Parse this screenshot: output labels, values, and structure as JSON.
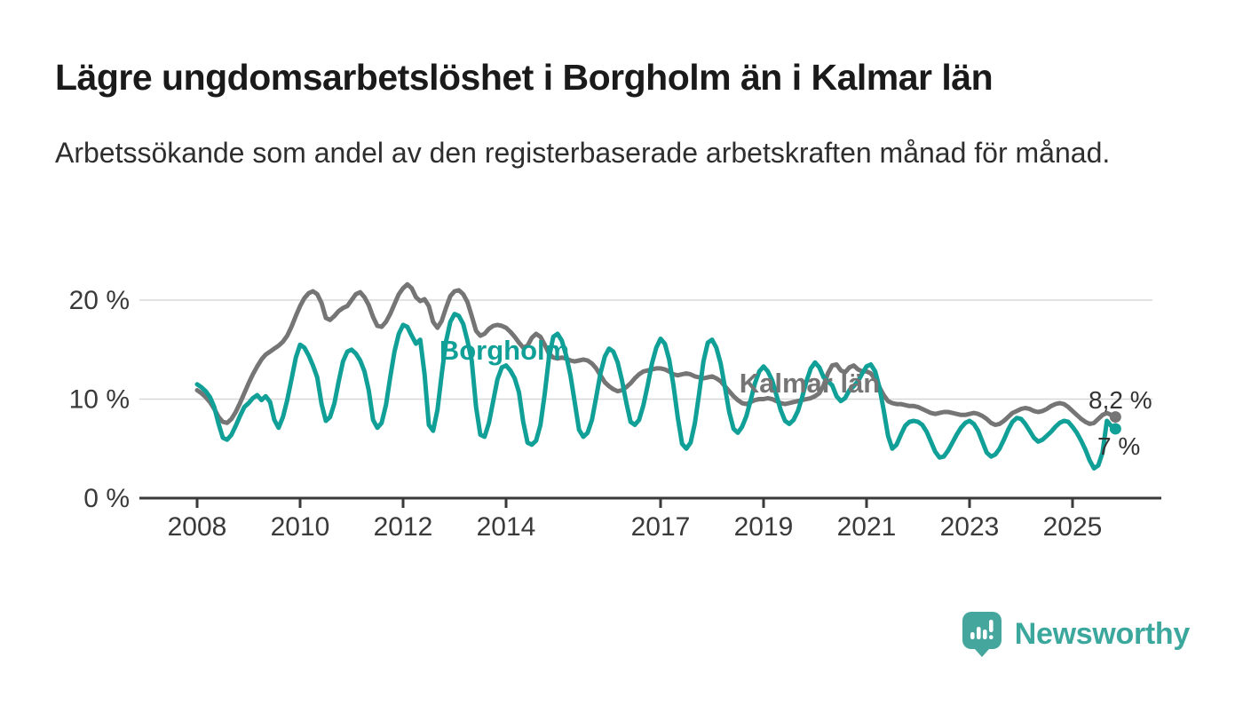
{
  "header": {
    "title": "Lägre ungdomsarbetslöshet i Borgholm än i Kalmar län",
    "subtitle": "Arbetssökande som andel av den registerbaserade arbetskraften månad för månad."
  },
  "branding": {
    "name": "Newsworthy",
    "logo_icon": "bar-chart-speech-bubble-icon",
    "logo_color": "#45a69e"
  },
  "chart_data": {
    "type": "line",
    "unit": "%",
    "frequency": "monthly",
    "start_year": 2008,
    "start_month": 1,
    "grid": "horizontal-only",
    "legend": "inline-labels-on-lines",
    "ylim": [
      0,
      23
    ],
    "y_ticks": [
      {
        "value": 0,
        "label": "0 %"
      },
      {
        "value": 10,
        "label": "10 %"
      },
      {
        "value": 20,
        "label": "20 %"
      }
    ],
    "x_tick_years": [
      2008,
      2010,
      2012,
      2014,
      2017,
      2019,
      2021,
      2023,
      2025
    ],
    "colors": {
      "grid": "#d8d8d8",
      "axis": "#3a3a3a"
    },
    "series": [
      {
        "name": "Kalmar län",
        "color": "#757575",
        "end_label": "8,2 %",
        "last_value": 8.2,
        "values": [
          10.9,
          10.6,
          10.2,
          9.7,
          9.0,
          8.2,
          7.7,
          7.6,
          8.0,
          8.7,
          9.6,
          10.6,
          11.6,
          12.5,
          13.3,
          14.0,
          14.5,
          14.8,
          15.1,
          15.4,
          15.8,
          16.4,
          17.3,
          18.4,
          19.4,
          20.2,
          20.7,
          20.9,
          20.6,
          19.7,
          18.2,
          18.0,
          18.4,
          18.9,
          19.2,
          19.4,
          20.0,
          20.6,
          20.8,
          20.3,
          19.5,
          18.3,
          17.4,
          17.3,
          17.8,
          18.6,
          19.6,
          20.6,
          21.2,
          21.6,
          21.2,
          20.3,
          19.9,
          20.1,
          19.4,
          17.8,
          17.2,
          17.9,
          19.2,
          20.4,
          20.9,
          21.0,
          20.6,
          19.8,
          18.4,
          16.9,
          16.4,
          16.6,
          17.1,
          17.4,
          17.5,
          17.4,
          17.2,
          16.8,
          16.3,
          15.7,
          15.2,
          15.4,
          16.2,
          16.6,
          16.3,
          15.5,
          14.6,
          14.2,
          14.1,
          14.2,
          14.1,
          13.9,
          13.8,
          13.9,
          14.0,
          13.9,
          13.6,
          13.1,
          12.4,
          11.7,
          11.3,
          11.0,
          10.8,
          10.9,
          11.2,
          11.6,
          12.1,
          12.5,
          12.8,
          12.9,
          13.0,
          13.1,
          13.1,
          13.0,
          12.8,
          12.5,
          12.4,
          12.5,
          12.6,
          12.5,
          12.3,
          12.2,
          12.1,
          12.2,
          12.3,
          12.1,
          11.8,
          11.3,
          10.8,
          10.3,
          9.9,
          9.6,
          9.5,
          9.7,
          9.9,
          10.0,
          10.0,
          10.1,
          10.0,
          9.8,
          9.6,
          9.5,
          9.6,
          9.7,
          9.8,
          9.9,
          10.0,
          10.1,
          10.3,
          10.6,
          11.4,
          12.6,
          13.4,
          13.5,
          12.9,
          12.7,
          13.2,
          13.4,
          13.0,
          12.8,
          12.8,
          12.6,
          12.0,
          11.2,
          10.4,
          9.8,
          9.6,
          9.5,
          9.5,
          9.4,
          9.3,
          9.3,
          9.2,
          9.0,
          8.8,
          8.6,
          8.5,
          8.6,
          8.7,
          8.7,
          8.6,
          8.5,
          8.4,
          8.4,
          8.5,
          8.6,
          8.5,
          8.3,
          8.0,
          7.6,
          7.4,
          7.5,
          7.8,
          8.2,
          8.6,
          8.8,
          9.0,
          9.1,
          9.0,
          8.8,
          8.7,
          8.8,
          9.0,
          9.3,
          9.5,
          9.6,
          9.5,
          9.2,
          8.8,
          8.4,
          8.0,
          7.7,
          7.5,
          7.6,
          8.0,
          8.4,
          8.6,
          8.4,
          8.2
        ]
      },
      {
        "name": "Borgholm",
        "color": "#11a097",
        "end_label": "7 %",
        "last_value": 7.0,
        "values": [
          11.5,
          11.2,
          10.8,
          10.2,
          9.2,
          7.5,
          6.1,
          5.9,
          6.4,
          7.3,
          8.3,
          9.2,
          9.6,
          10.1,
          10.4,
          9.9,
          10.3,
          9.7,
          7.9,
          7.1,
          8.2,
          9.9,
          12.0,
          14.2,
          15.5,
          15.2,
          14.4,
          13.4,
          12.2,
          9.5,
          7.8,
          8.2,
          9.6,
          11.8,
          13.8,
          14.8,
          15.0,
          14.6,
          13.9,
          12.8,
          10.9,
          7.9,
          7.1,
          7.6,
          9.4,
          12.2,
          14.8,
          16.6,
          17.5,
          17.3,
          16.4,
          15.6,
          16.0,
          12.5,
          7.4,
          6.8,
          8.9,
          12.5,
          15.8,
          17.8,
          18.6,
          18.4,
          17.6,
          15.9,
          13.9,
          9.2,
          6.4,
          6.2,
          7.6,
          9.8,
          12.0,
          13.2,
          13.4,
          12.9,
          12.1,
          10.7,
          7.7,
          5.6,
          5.4,
          5.8,
          7.4,
          10.5,
          14.2,
          16.3,
          16.6,
          15.9,
          14.4,
          12.4,
          9.7,
          6.9,
          6.2,
          6.6,
          7.9,
          10.2,
          12.6,
          14.3,
          15.1,
          14.8,
          13.7,
          11.9,
          9.7,
          7.7,
          7.4,
          7.9,
          9.4,
          11.4,
          13.6,
          15.2,
          16.1,
          15.6,
          14.0,
          11.4,
          8.2,
          5.5,
          5.0,
          5.6,
          7.6,
          10.6,
          13.8,
          15.7,
          16.0,
          15.2,
          13.6,
          11.2,
          8.7,
          7.0,
          6.6,
          7.2,
          8.3,
          9.9,
          11.6,
          12.8,
          13.3,
          12.8,
          11.9,
          10.4,
          8.9,
          7.8,
          7.5,
          7.9,
          8.8,
          10.2,
          11.8,
          13.1,
          13.7,
          13.2,
          12.2,
          11.8,
          11.4,
          10.3,
          9.8,
          10.1,
          10.9,
          11.3,
          11.8,
          12.6,
          13.3,
          13.5,
          12.8,
          11.2,
          8.9,
          6.3,
          5.0,
          5.4,
          6.4,
          7.3,
          7.7,
          7.8,
          7.7,
          7.4,
          6.7,
          5.7,
          4.7,
          4.1,
          4.2,
          4.8,
          5.6,
          6.4,
          7.1,
          7.6,
          7.8,
          7.5,
          6.8,
          5.7,
          4.6,
          4.2,
          4.4,
          5.0,
          5.9,
          6.9,
          7.7,
          8.1,
          8.0,
          7.5,
          6.8,
          6.1,
          5.7,
          5.9,
          6.3,
          6.7,
          7.2,
          7.6,
          7.8,
          7.7,
          7.2,
          6.6,
          5.8,
          4.9,
          3.8,
          3.0,
          3.3,
          4.6,
          7.8,
          7.3,
          7.0
        ]
      }
    ]
  }
}
